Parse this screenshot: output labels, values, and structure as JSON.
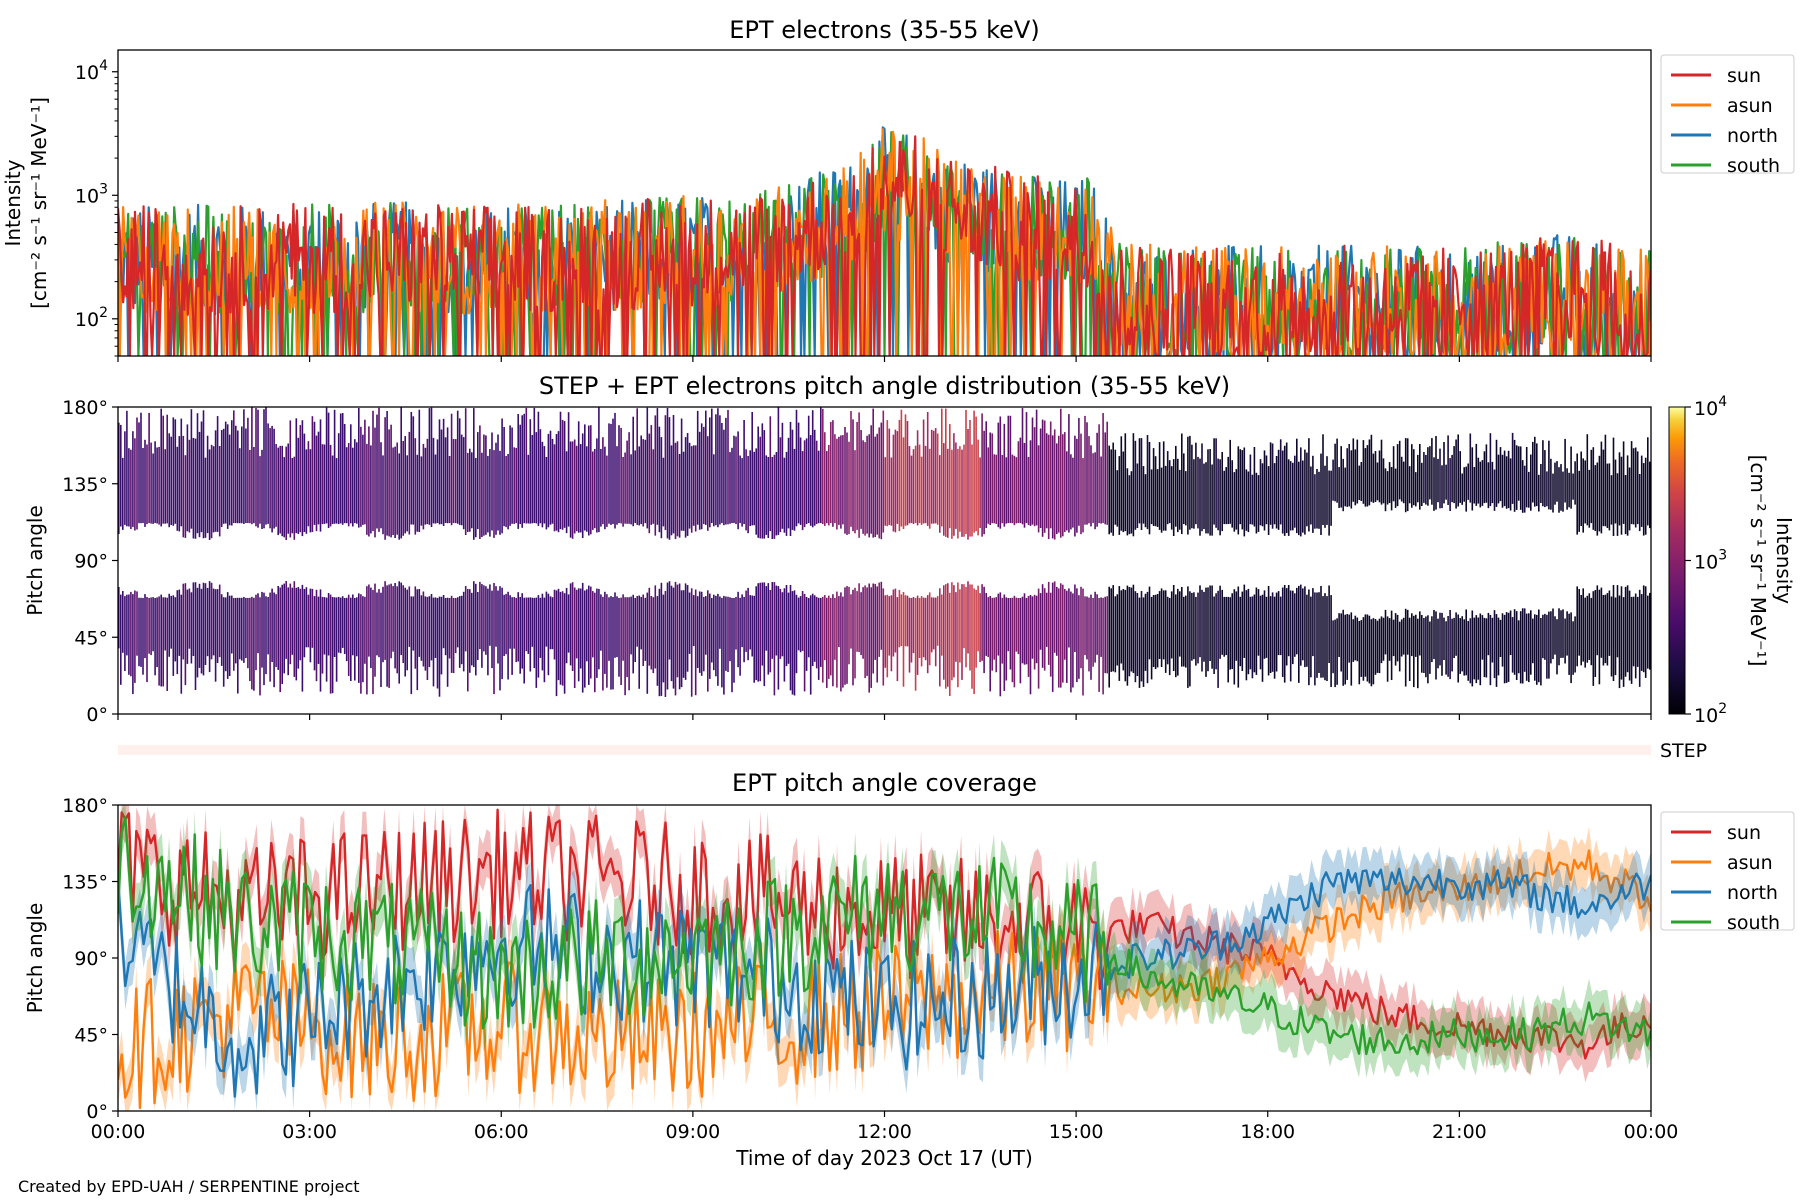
{
  "footer": "Created by EPD-UAH / SERPENTINE project",
  "colors": {
    "sun": "#d62728",
    "asun": "#ff7f0e",
    "north": "#1f77b4",
    "south": "#2ca02c"
  },
  "chart_data": [
    {
      "type": "line",
      "title": "EPT electrons (35-55 keV)",
      "ylabel": [
        "Intensity",
        "[cm⁻² s⁻¹ sr⁻¹ MeV⁻¹]"
      ],
      "yscale": "log",
      "ylim": [
        50,
        15000
      ],
      "yticks": [
        {
          "base": "10",
          "exp": "2",
          "value": 100
        },
        {
          "base": "10",
          "exp": "3",
          "value": 1000
        },
        {
          "base": "10",
          "exp": "4",
          "value": 10000
        }
      ],
      "xlim_hours": [
        0,
        24
      ],
      "legend": {
        "placement": "outside-right",
        "entries": [
          "sun",
          "asun",
          "north",
          "south"
        ]
      },
      "series": [
        {
          "name": "sun",
          "color": "#d62728"
        },
        {
          "name": "asun",
          "color": "#ff7f0e"
        },
        {
          "name": "north",
          "color": "#1f77b4"
        },
        {
          "name": "south",
          "color": "#2ca02c"
        }
      ],
      "profile": {
        "hours": [
          0,
          2,
          4,
          6,
          8,
          10,
          10.8,
          11.5,
          12,
          12.5,
          13,
          14,
          15,
          15.2,
          15.6,
          18,
          20,
          22,
          22.5,
          24
        ],
        "median_intensity": [
          300,
          300,
          320,
          300,
          330,
          380,
          520,
          700,
          1300,
          1100,
          800,
          550,
          480,
          520,
          150,
          140,
          140,
          150,
          180,
          130
        ]
      }
    },
    {
      "type": "heatmap",
      "title": "STEP + EPT electrons pitch angle distribution (35-55 keV)",
      "ylabel": "Pitch angle",
      "yticks": [
        "0°",
        "45°",
        "90°",
        "135°",
        "180°"
      ],
      "ylim": [
        0,
        180
      ],
      "xlim_hours": [
        0,
        24
      ],
      "colorbar": {
        "label": [
          "Intensity",
          "[cm⁻² s⁻¹ sr⁻¹ MeV⁻¹]"
        ],
        "scale": "log",
        "range": [
          100,
          10000
        ],
        "ticks": [
          {
            "base": "10",
            "exp": "2"
          },
          {
            "base": "10",
            "exp": "3"
          },
          {
            "base": "10",
            "exp": "4"
          }
        ],
        "colormap": "inferno"
      }
    },
    {
      "type": "bar",
      "label": "STEP",
      "xlim_hours": [
        0,
        24
      ]
    },
    {
      "type": "line",
      "title": "EPT pitch angle coverage",
      "ylabel": "Pitch angle",
      "xlabel": "Time of day 2023 Oct 17 (UT)",
      "yticks": [
        "0°",
        "45°",
        "90°",
        "135°",
        "180°"
      ],
      "ylim": [
        0,
        180
      ],
      "xticks": [
        "00:00",
        "03:00",
        "06:00",
        "09:00",
        "12:00",
        "15:00",
        "18:00",
        "21:00",
        "00:00"
      ],
      "xlim_hours": [
        0,
        24
      ],
      "legend": {
        "placement": "outside-right",
        "entries": [
          "sun",
          "asun",
          "north",
          "south"
        ]
      },
      "series": [
        {
          "name": "sun",
          "color": "#d62728",
          "x": [
            0,
            2,
            4,
            6,
            8,
            10,
            12,
            14,
            15.5,
            16,
            17,
            18,
            19,
            20,
            21,
            22,
            23,
            24
          ],
          "y": [
            145,
            120,
            130,
            140,
            135,
            125,
            115,
            110,
            105,
            110,
            100,
            90,
            70,
            55,
            50,
            45,
            40,
            55
          ]
        },
        {
          "name": "asun",
          "color": "#ff7f0e",
          "x": [
            0,
            2,
            4,
            6,
            8,
            10,
            12,
            14,
            15.5,
            16,
            17,
            18,
            19,
            20,
            21,
            22,
            23,
            24
          ],
          "y": [
            35,
            60,
            40,
            50,
            40,
            50,
            60,
            70,
            75,
            70,
            75,
            90,
            110,
            125,
            130,
            140,
            145,
            125
          ]
        },
        {
          "name": "north",
          "color": "#1f77b4",
          "x": [
            0,
            2,
            4,
            6,
            8,
            10,
            12,
            14,
            15.5,
            16,
            17,
            18,
            19,
            20,
            21,
            22,
            23,
            24
          ],
          "y": [
            100,
            40,
            70,
            100,
            90,
            80,
            60,
            70,
            85,
            90,
            95,
            110,
            135,
            135,
            135,
            130,
            120,
            135
          ]
        },
        {
          "name": "south",
          "color": "#2ca02c",
          "x": [
            0,
            2,
            4,
            6,
            8,
            10,
            12,
            14,
            15.5,
            16,
            17,
            18,
            19,
            20,
            21,
            22,
            23,
            24
          ],
          "y": [
            150,
            110,
            100,
            80,
            90,
            100,
            120,
            110,
            95,
            80,
            70,
            60,
            45,
            40,
            45,
            45,
            55,
            45
          ]
        }
      ]
    }
  ]
}
